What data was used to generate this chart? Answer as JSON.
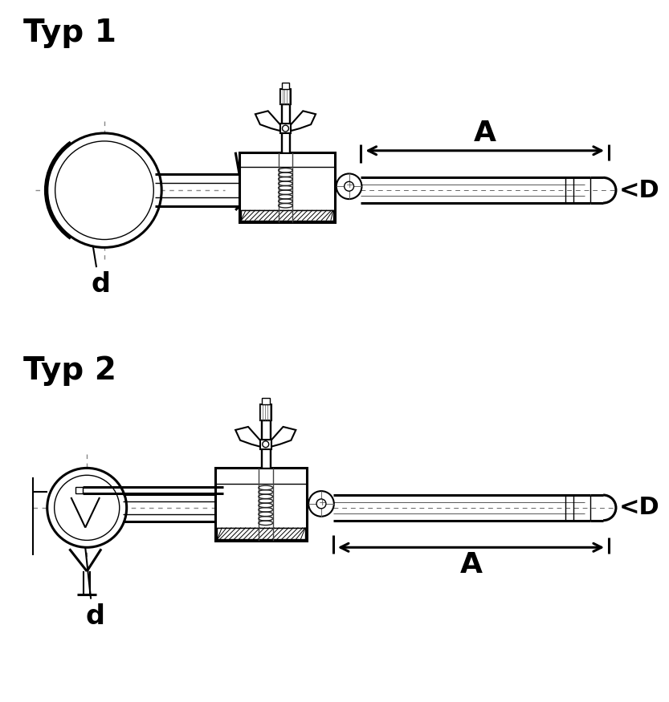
{
  "bg_color": "#ffffff",
  "line_color": "#000000",
  "title1": "Typ 1",
  "title2": "Typ 2",
  "label_A": "A",
  "label_D": "<D",
  "label_d": "d",
  "title_fontsize": 28,
  "label_A_fontsize": 26,
  "label_D_fontsize": 22,
  "label_d_fontsize": 24,
  "figsize": [
    8.33,
    8.75
  ],
  "dpi": 100,
  "lw_thick": 2.2,
  "lw_med": 1.5,
  "lw_thin": 1.0,
  "lw_vthin": 0.7
}
